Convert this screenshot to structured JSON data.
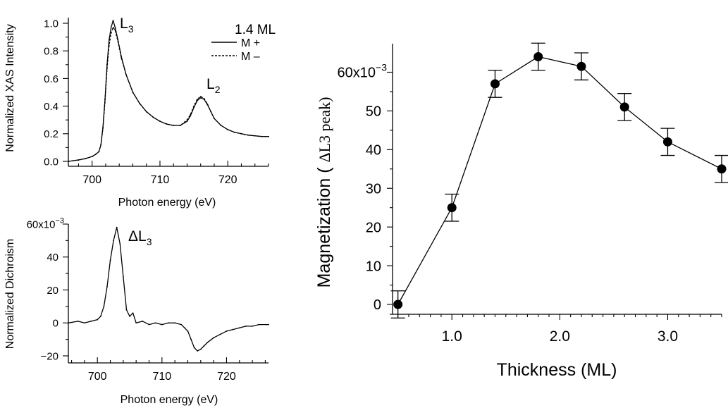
{
  "chart_data": [
    {
      "id": "xas",
      "type": "line",
      "title": "",
      "xlabel": "Photon energy (eV)",
      "ylabel": "Normalized XAS Intensity",
      "xlim": [
        696.5,
        726
      ],
      "ylim": [
        0,
        1.0
      ],
      "xticks": [
        700,
        710,
        720
      ],
      "xtick_labels": [
        "700",
        "710",
        "720"
      ],
      "yticks": [
        0,
        0.2,
        0.4,
        0.6,
        0.8,
        1.0
      ],
      "ytick_labels": [
        "0.0",
        "0.2",
        "0.4",
        "0.6",
        "0.8",
        "1.0"
      ],
      "legend": {
        "title": "1.4 ML",
        "position": "top-right",
        "entries": [
          {
            "label": "M +",
            "style": "solid"
          },
          {
            "label": "M –",
            "style": "dashed"
          }
        ]
      },
      "annotations": [
        {
          "base": "L",
          "sub": "3",
          "x": 703.4,
          "y": 1.0
        },
        {
          "base": "L",
          "sub": "2",
          "x": 716.2,
          "y": 0.52
        }
      ],
      "series": [
        {
          "name": "M +",
          "style": "solid",
          "x": [
            696.5,
            698,
            699,
            700,
            700.5,
            701,
            701.3,
            701.6,
            701.9,
            702.2,
            702.5,
            702.8,
            703.1,
            703.4,
            703.8,
            704.3,
            705,
            706,
            707,
            708,
            709,
            710,
            711,
            712,
            713,
            714,
            714.5,
            715,
            715.5,
            716,
            716.5,
            717,
            717.5,
            718,
            719,
            720,
            721,
            722,
            723,
            724,
            725,
            726
          ],
          "y": [
            0.0,
            0.01,
            0.02,
            0.035,
            0.05,
            0.07,
            0.12,
            0.25,
            0.45,
            0.7,
            0.88,
            0.97,
            1.02,
            0.97,
            0.88,
            0.76,
            0.63,
            0.5,
            0.42,
            0.36,
            0.32,
            0.29,
            0.27,
            0.26,
            0.26,
            0.29,
            0.33,
            0.39,
            0.44,
            0.46,
            0.45,
            0.41,
            0.36,
            0.31,
            0.26,
            0.23,
            0.21,
            0.2,
            0.19,
            0.185,
            0.18,
            0.18
          ]
        },
        {
          "name": "M –",
          "style": "dashed",
          "x": [
            696.5,
            698,
            699,
            700,
            700.5,
            701,
            701.3,
            701.6,
            701.9,
            702.2,
            702.5,
            702.8,
            703.1,
            703.4,
            703.8,
            704.3,
            705,
            706,
            707,
            708,
            709,
            710,
            711,
            712,
            713,
            714,
            714.5,
            715,
            715.5,
            716,
            716.5,
            717,
            717.5,
            718,
            719,
            720,
            721,
            722,
            723,
            724,
            725,
            726
          ],
          "y": [
            0.0,
            0.01,
            0.02,
            0.035,
            0.05,
            0.07,
            0.12,
            0.24,
            0.43,
            0.67,
            0.84,
            0.93,
            0.97,
            0.95,
            0.87,
            0.75,
            0.63,
            0.5,
            0.42,
            0.36,
            0.32,
            0.29,
            0.27,
            0.26,
            0.26,
            0.3,
            0.34,
            0.4,
            0.45,
            0.47,
            0.455,
            0.415,
            0.36,
            0.31,
            0.26,
            0.23,
            0.21,
            0.2,
            0.19,
            0.185,
            0.18,
            0.18
          ]
        }
      ]
    },
    {
      "id": "dichroism",
      "type": "line",
      "title": "",
      "xlabel": "Photon energy (eV)",
      "ylabel": "Normalized Dichroism",
      "xlim": [
        695.5,
        726.5
      ],
      "ylim": [
        -20,
        60
      ],
      "xticks": [
        700,
        710,
        720
      ],
      "xtick_labels": [
        "700",
        "710",
        "720"
      ],
      "yticks": [
        -20,
        0,
        20,
        40,
        60
      ],
      "ytick_labels": [
        "−20",
        "0",
        "20",
        "40",
        "60x10"
      ],
      "y_exponent": "−3",
      "annotations": [
        {
          "base": "ΔL",
          "sub": "3",
          "x": 705,
          "y": 53
        }
      ],
      "series": [
        {
          "name": "",
          "style": "solid",
          "x": [
            695.5,
            697,
            698,
            699,
            700,
            700.5,
            701,
            701.5,
            702,
            702.5,
            703,
            703.5,
            704,
            704.5,
            705,
            705.5,
            706,
            707,
            708,
            709,
            710,
            711,
            712,
            713,
            713.5,
            714,
            714.5,
            715,
            715.5,
            716,
            716.5,
            717,
            718,
            719,
            720,
            721,
            722,
            723,
            724,
            725,
            726.5
          ],
          "y": [
            0,
            1,
            0,
            1,
            2,
            4,
            10,
            22,
            38,
            50,
            58,
            48,
            28,
            8,
            4,
            6,
            0,
            1,
            -1,
            0,
            -1,
            0,
            0,
            -1,
            -3,
            -5,
            -10,
            -15,
            -17,
            -16,
            -14,
            -12,
            -9,
            -7,
            -5,
            -4,
            -3,
            -2,
            -2,
            -1,
            -1
          ]
        }
      ]
    },
    {
      "id": "magnetization",
      "type": "scatter",
      "title": "",
      "xlabel": "Thickness (ML)",
      "ylabel": "Magnetization ( ",
      "ylabel_serif": "ΔL3 peak)",
      "xlim": [
        0.45,
        3.5
      ],
      "ylim": [
        0,
        63
      ],
      "xticks": [
        1.0,
        2.0,
        3.0
      ],
      "xtick_labels": [
        "1.0",
        "2.0",
        "3.0"
      ],
      "yticks": [
        0,
        10,
        20,
        30,
        40,
        50,
        60
      ],
      "ytick_labels": [
        "0",
        "10",
        "20",
        "30",
        "40",
        "50",
        "60x10"
      ],
      "y_exponent": "−3",
      "series": [
        {
          "name": "",
          "x": [
            0.5,
            1.0,
            1.4,
            1.8,
            2.2,
            2.6,
            3.0,
            3.5
          ],
          "y": [
            0,
            25,
            57,
            64,
            61.5,
            51,
            42,
            35
          ],
          "yerr": [
            3.5,
            3.5,
            3.5,
            3.5,
            3.5,
            3.5,
            3.5,
            3.5
          ]
        }
      ]
    }
  ]
}
